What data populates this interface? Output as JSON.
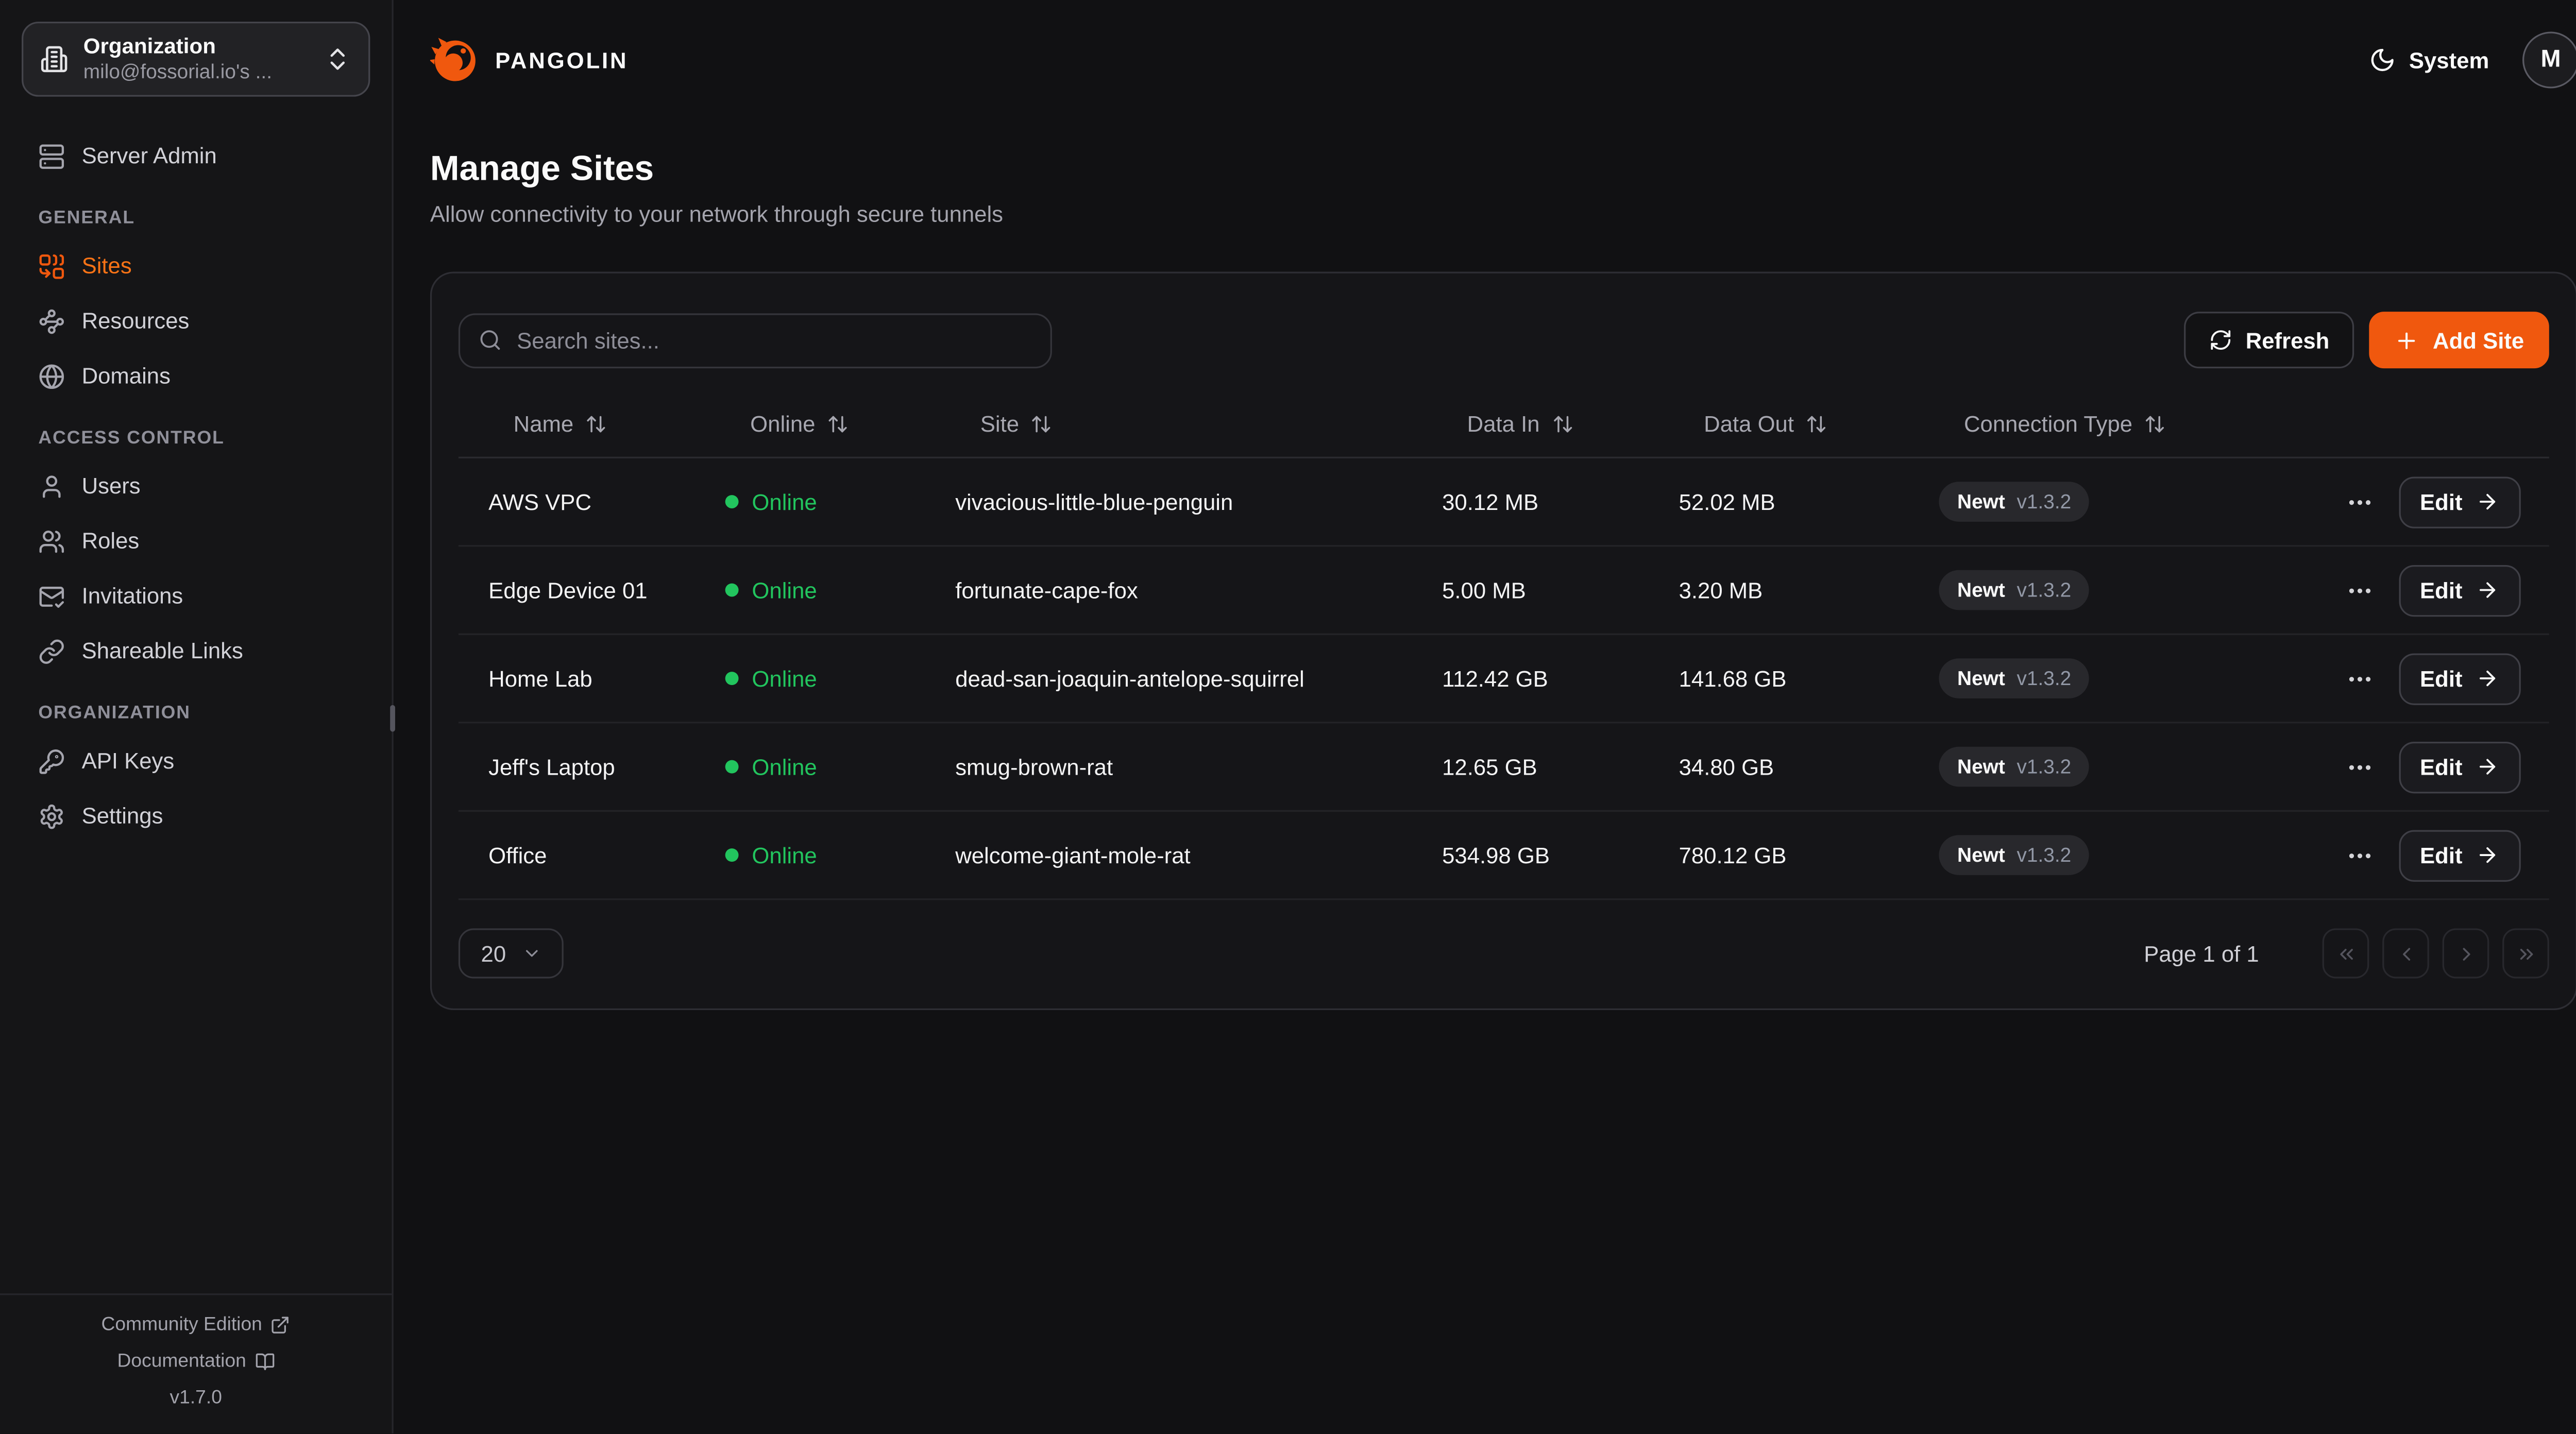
{
  "colors": {
    "accent": "#f0580e",
    "accent_text": "#f97316",
    "online_green": "#22c55e"
  },
  "brand": {
    "logo_text": "PANGOLIN"
  },
  "sidebar": {
    "org_selector": {
      "label": "Organization",
      "value": "milo@fossorial.io's ...",
      "icon": "building"
    },
    "server_admin": {
      "label": "Server Admin",
      "icon": "server"
    },
    "sections": [
      {
        "label": "GENERAL",
        "items": [
          {
            "label": "Sites",
            "icon": "combine",
            "active": true
          },
          {
            "label": "Resources",
            "icon": "waypoints",
            "active": false
          },
          {
            "label": "Domains",
            "icon": "globe",
            "active": false
          }
        ]
      },
      {
        "label": "ACCESS CONTROL",
        "items": [
          {
            "label": "Users",
            "icon": "user",
            "active": false
          },
          {
            "label": "Roles",
            "icon": "users",
            "active": false
          },
          {
            "label": "Invitations",
            "icon": "mail-check",
            "active": false
          },
          {
            "label": "Shareable Links",
            "icon": "link",
            "active": false
          }
        ]
      },
      {
        "label": "ORGANIZATION",
        "items": [
          {
            "label": "API Keys",
            "icon": "key-round",
            "active": false
          },
          {
            "label": "Settings",
            "icon": "settings",
            "active": false
          }
        ]
      }
    ],
    "footer": {
      "community_edition": "Community Edition",
      "documentation": "Documentation",
      "version": "v1.7.0"
    }
  },
  "topbar": {
    "theme_label": "System",
    "avatar_initial": "M"
  },
  "page": {
    "title": "Manage Sites",
    "subtitle": "Allow connectivity to your network through secure tunnels"
  },
  "toolbar": {
    "search_placeholder": "Search sites...",
    "refresh_label": "Refresh",
    "add_site_label": "Add Site"
  },
  "table": {
    "columns": [
      "Name",
      "Online",
      "Site",
      "Data In",
      "Data Out",
      "Connection Type"
    ],
    "edit_label": "Edit",
    "rows": [
      {
        "name": "AWS VPC",
        "status": "Online",
        "site": "vivacious-little-blue-penguin",
        "data_in": "30.12 MB",
        "data_out": "52.02 MB",
        "conn_type": "Newt",
        "conn_version": "v1.3.2"
      },
      {
        "name": "Edge Device 01",
        "status": "Online",
        "site": "fortunate-cape-fox",
        "data_in": "5.00 MB",
        "data_out": "3.20 MB",
        "conn_type": "Newt",
        "conn_version": "v1.3.2"
      },
      {
        "name": "Home Lab",
        "status": "Online",
        "site": "dead-san-joaquin-antelope-squirrel",
        "data_in": "112.42 GB",
        "data_out": "141.68 GB",
        "conn_type": "Newt",
        "conn_version": "v1.3.2"
      },
      {
        "name": "Jeff's Laptop",
        "status": "Online",
        "site": "smug-brown-rat",
        "data_in": "12.65 GB",
        "data_out": "34.80 GB",
        "conn_type": "Newt",
        "conn_version": "v1.3.2"
      },
      {
        "name": "Office",
        "status": "Online",
        "site": "welcome-giant-mole-rat",
        "data_in": "534.98 GB",
        "data_out": "780.12 GB",
        "conn_type": "Newt",
        "conn_version": "v1.3.2"
      }
    ]
  },
  "pagination": {
    "page_size": "20",
    "page_label": "Page 1 of 1"
  }
}
